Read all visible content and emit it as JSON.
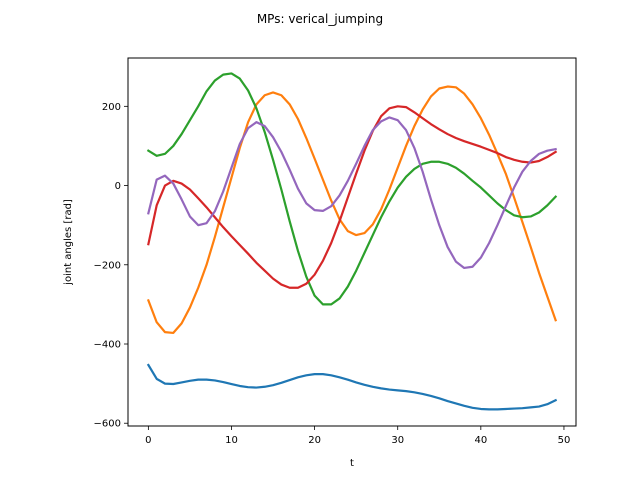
{
  "chart_data": {
    "type": "line",
    "title": "MPs: verical_jumping",
    "xlabel": "t",
    "ylabel": "joint angles [rad]",
    "xlim": [
      -2.45,
      51.45
    ],
    "ylim": [
      -607,
      322
    ],
    "xticks": [
      0,
      10,
      20,
      30,
      40,
      50
    ],
    "yticks": [
      -600,
      -400,
      -200,
      0,
      200
    ],
    "grid": false,
    "legend": "none",
    "x": [
      0,
      1,
      2,
      3,
      4,
      5,
      6,
      7,
      8,
      9,
      10,
      11,
      12,
      13,
      14,
      15,
      16,
      17,
      18,
      19,
      20,
      21,
      22,
      23,
      24,
      25,
      26,
      27,
      28,
      29,
      30,
      31,
      32,
      33,
      34,
      35,
      36,
      37,
      38,
      39,
      40,
      41,
      42,
      43,
      44,
      45,
      46,
      47,
      48,
      49
    ],
    "series": [
      {
        "color": "#1f77b4",
        "values": [
          -453,
          -488,
          -500,
          -501,
          -497,
          -493,
          -490,
          -490,
          -492,
          -496,
          -501,
          -506,
          -509,
          -510,
          -508,
          -504,
          -498,
          -491,
          -484,
          -479,
          -476,
          -476,
          -479,
          -484,
          -490,
          -497,
          -503,
          -508,
          -512,
          -515,
          -517,
          -519,
          -522,
          -526,
          -531,
          -537,
          -544,
          -550,
          -556,
          -561,
          -564,
          -565,
          -565,
          -564,
          -563,
          -562,
          -560,
          -558,
          -552,
          -542
        ]
      },
      {
        "color": "#ff7f0e",
        "values": [
          -290,
          -345,
          -370,
          -372,
          -348,
          -308,
          -258,
          -200,
          -130,
          -55,
          20,
          95,
          160,
          205,
          228,
          235,
          228,
          205,
          168,
          120,
          68,
          15,
          -38,
          -85,
          -115,
          -125,
          -120,
          -98,
          -60,
          -10,
          45,
          100,
          150,
          192,
          225,
          245,
          250,
          248,
          232,
          205,
          170,
          128,
          80,
          30,
          -30,
          -92,
          -155,
          -220,
          -280,
          -340
        ]
      },
      {
        "color": "#2ca02c",
        "values": [
          88,
          75,
          80,
          100,
          130,
          165,
          200,
          238,
          265,
          280,
          283,
          270,
          240,
          195,
          135,
          65,
          -10,
          -90,
          -165,
          -230,
          -278,
          -300,
          -300,
          -285,
          -255,
          -215,
          -170,
          -125,
          -80,
          -40,
          -5,
          22,
          42,
          55,
          60,
          60,
          55,
          45,
          30,
          12,
          -5,
          -25,
          -45,
          -62,
          -75,
          -80,
          -78,
          -68,
          -50,
          -28
        ]
      },
      {
        "color": "#d62728",
        "values": [
          -148,
          -50,
          0,
          12,
          5,
          -10,
          -32,
          -55,
          -80,
          -105,
          -128,
          -150,
          -172,
          -195,
          -215,
          -235,
          -250,
          -258,
          -258,
          -248,
          -225,
          -190,
          -145,
          -90,
          -30,
          30,
          88,
          138,
          175,
          195,
          200,
          198,
          185,
          170,
          155,
          142,
          130,
          120,
          112,
          105,
          98,
          90,
          82,
          72,
          65,
          60,
          58,
          62,
          72,
          85
        ]
      },
      {
        "color": "#9467bd",
        "values": [
          -70,
          15,
          25,
          5,
          -35,
          -78,
          -100,
          -95,
          -65,
          -15,
          45,
          105,
          145,
          160,
          150,
          122,
          85,
          40,
          -8,
          -45,
          -62,
          -64,
          -52,
          -25,
          12,
          55,
          100,
          140,
          162,
          172,
          165,
          140,
          95,
          35,
          -35,
          -100,
          -155,
          -192,
          -208,
          -205,
          -182,
          -145,
          -100,
          -52,
          -5,
          35,
          62,
          80,
          88,
          92
        ]
      }
    ]
  }
}
